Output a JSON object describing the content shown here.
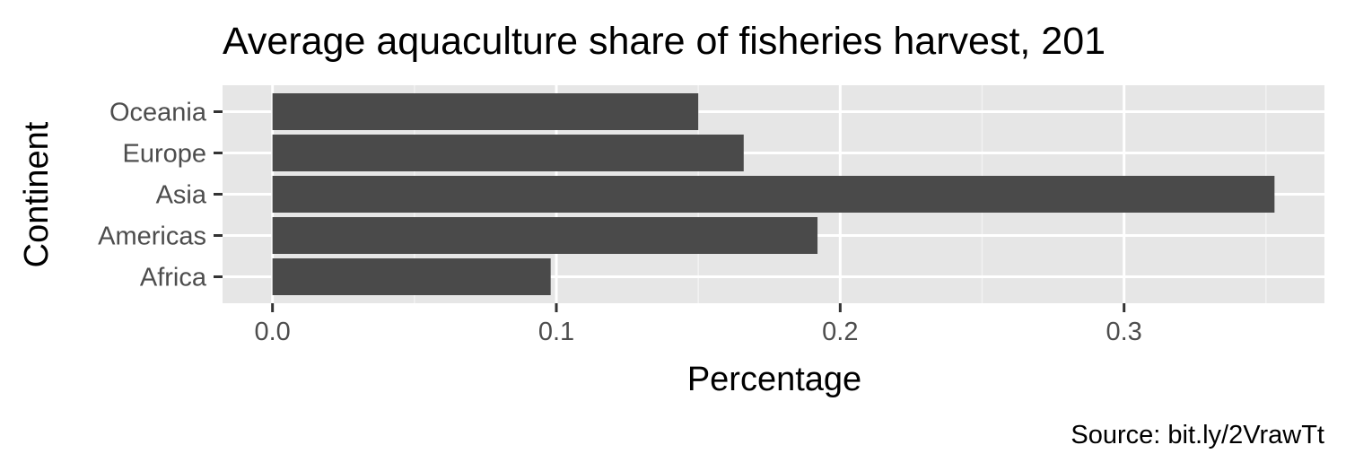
{
  "chart_data": {
    "type": "bar",
    "orientation": "horizontal",
    "title": "Average aquaculture share of fisheries harvest, 201",
    "xlabel": "Percentage",
    "ylabel": "Continent",
    "caption": "Source: bit.ly/2VrawTt",
    "categories": [
      "Africa",
      "Americas",
      "Asia",
      "Europe",
      "Oceania"
    ],
    "values": [
      0.098,
      0.192,
      0.353,
      0.166,
      0.15
    ],
    "xlim": [
      -0.0176,
      0.3706
    ],
    "xticks": [
      0.0,
      0.1,
      0.2,
      0.3
    ],
    "xtick_labels": [
      "0.0",
      "0.1",
      "0.2",
      "0.3"
    ],
    "grid": true,
    "colors": {
      "bar": "#4a4a4a",
      "panel_background": "#e6e6e6",
      "grid_major": "#ffffff",
      "grid_minor": "#f2f2f2",
      "tick_text": "#4d4d4d",
      "tick_mark": "#333333",
      "title_text": "#000000"
    }
  }
}
